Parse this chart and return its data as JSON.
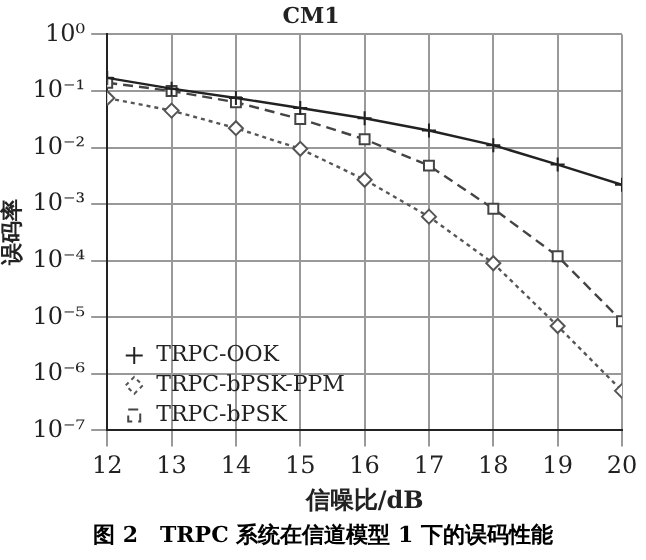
{
  "chart_data": {
    "type": "line",
    "title": "CM1",
    "xlabel": "信噪比/dB",
    "ylabel": "误码率",
    "annotations": [
      "图 2　TRPC 系统在信道模型 1 下的误码性能"
    ],
    "x": [
      12,
      13,
      14,
      15,
      16,
      17,
      18,
      19,
      20
    ],
    "series": [
      {
        "name": "TRPC-OOK",
        "color": "#222222",
        "marker": "cross",
        "line_style": "solid",
        "values": [
          0.17,
          0.11,
          0.075,
          0.05,
          0.033,
          0.02,
          0.011,
          0.005,
          0.0022
        ]
      },
      {
        "name": "TRPC-bPSK-PPM",
        "color": "#555555",
        "marker": "diamond",
        "line_style": "dotted",
        "values": [
          0.075,
          0.045,
          0.022,
          0.0095,
          0.0027,
          0.0006,
          9e-05,
          7e-06,
          5e-07
        ]
      },
      {
        "name": "TRPC-bPSK",
        "color": "#444444",
        "marker": "square",
        "line_style": "dashed",
        "values": [
          0.14,
          0.1,
          0.063,
          0.032,
          0.014,
          0.0048,
          0.00083,
          0.00012,
          8.5e-06
        ]
      }
    ],
    "xlim": [
      12,
      20
    ],
    "xticks": [
      12,
      13,
      14,
      15,
      16,
      17,
      18,
      19,
      20
    ],
    "ylim": [
      1e-07,
      1
    ],
    "yticks": [
      {
        "value": 1e-07,
        "label": "10⁻⁷"
      },
      {
        "value": 1e-06,
        "label": "10⁻⁶"
      },
      {
        "value": 1e-05,
        "label": "10⁻⁵"
      },
      {
        "value": 0.0001,
        "label": "10⁻⁴"
      },
      {
        "value": 0.001,
        "label": "10⁻³"
      },
      {
        "value": 0.01,
        "label": "10⁻²"
      },
      {
        "value": 0.1,
        "label": "10⁻¹"
      },
      {
        "value": 1,
        "label": "10⁰"
      }
    ],
    "log": "y",
    "grid": true,
    "legend": "bottom left"
  }
}
